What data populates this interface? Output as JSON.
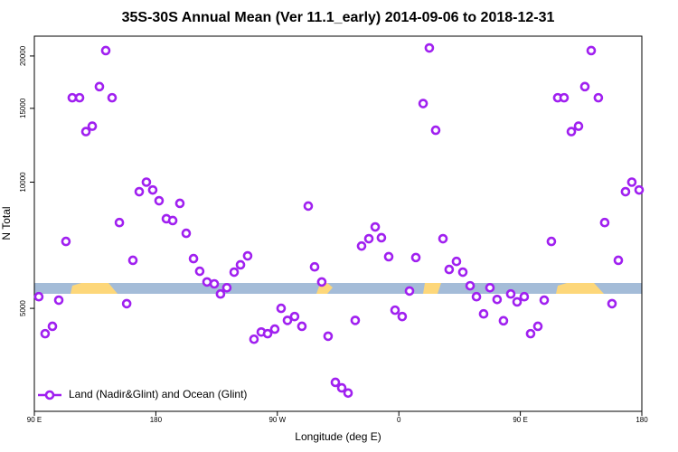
{
  "chart_data": {
    "type": "scatter",
    "title": "35S-30S Annual Mean (Ver 11.1_early)   2014-09-06 to 2018-12-31",
    "xlabel": "Longitude (deg E)",
    "ylabel": "N Total",
    "xlim": [
      90,
      540
    ],
    "xticks": [
      {
        "value": 90,
        "label": "90 E"
      },
      {
        "value": 180,
        "label": "180"
      },
      {
        "value": 270,
        "label": "90 W"
      },
      {
        "value": 360,
        "label": "0"
      },
      {
        "value": 450,
        "label": "90 E"
      },
      {
        "value": 540,
        "label": "180"
      }
    ],
    "ylim": [
      2840,
      22300
    ],
    "ylog": true,
    "yticks": [
      5000,
      10000,
      15000,
      20000
    ],
    "grid": false,
    "legend": "lower left",
    "series": [
      {
        "name": "Land (Nadir&Glint) and Ocean (Glint)",
        "color": "#a020f0",
        "x": [
          93.3,
          98.0,
          103.4,
          108.1,
          113.4,
          118.1,
          123.5,
          128.2,
          132.9,
          138.2,
          142.9,
          147.6,
          153.0,
          158.4,
          163.0,
          167.7,
          173.0,
          177.7,
          182.4,
          187.8,
          192.5,
          197.8,
          202.5,
          207.9,
          212.5,
          217.9,
          223.3,
          227.9,
          232.6,
          238.0,
          242.7,
          248.0,
          252.7,
          258.1,
          262.8,
          268.1,
          272.8,
          277.5,
          282.8,
          288.2,
          292.9,
          297.6,
          302.9,
          307.6,
          313.0,
          317.7,
          322.4,
          327.7,
          332.4,
          337.8,
          342.5,
          347.1,
          352.5,
          357.2,
          362.5,
          367.9,
          372.6,
          378.0,
          382.6,
          387.3,
          392.7,
          397.3,
          402.7,
          407.4,
          412.8,
          417.5,
          422.8,
          427.5,
          432.8,
          437.5,
          442.9,
          447.6,
          452.9,
          457.6,
          463.0,
          467.7,
          473.0,
          477.7,
          482.4,
          487.8,
          493.1,
          497.8,
          502.5,
          507.8,
          512.5,
          517.9,
          522.6,
          527.9,
          532.6,
          538.0
        ],
        "values": [
          5330,
          4350,
          4530,
          5230,
          7220,
          15900,
          15900,
          13200,
          13600,
          16900,
          20600,
          15900,
          8010,
          5130,
          6510,
          9490,
          10000,
          9580,
          9030,
          8180,
          8100,
          8900,
          7550,
          6570,
          6130,
          5780,
          5720,
          5410,
          5600,
          6100,
          6350,
          6670,
          4220,
          4390,
          4350,
          4460,
          5000,
          4680,
          4780,
          4530,
          8770,
          6280,
          5780,
          4290,
          3330,
          3230,
          3140,
          4680,
          7040,
          7330,
          7820,
          7370,
          6640,
          4950,
          4780,
          5500,
          6610,
          15400,
          20900,
          13300,
          7330,
          6190,
          6470,
          6100,
          5660,
          5330,
          4850,
          5600,
          5250,
          4670,
          5410,
          5180,
          5330,
          4350,
          4530,
          5230,
          7220,
          15900,
          15900,
          13200,
          13600,
          16900,
          20600,
          15900,
          8010,
          5130,
          6510,
          9490,
          10000,
          9580
        ]
      }
    ]
  }
}
